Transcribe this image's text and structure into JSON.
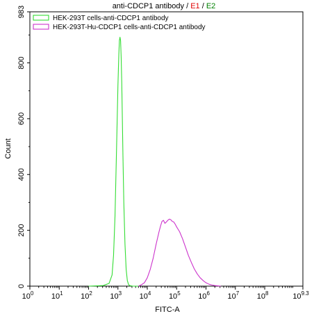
{
  "chart_data": {
    "type": "line",
    "title_parts": [
      {
        "text": "anti-CDCP1 antibody ",
        "color": "#000000"
      },
      {
        "text": "/ ",
        "color": "#000000"
      },
      {
        "text": "E1",
        "color": "#e00000"
      },
      {
        "text": " / ",
        "color": "#000000"
      },
      {
        "text": "E2",
        "color": "#008000"
      }
    ],
    "xlabel": "FITC-A",
    "ylabel": "Count",
    "x_scale": "log",
    "xlim": [
      1,
      1995262315
    ],
    "ylim": [
      0,
      983
    ],
    "x_ticks": [
      {
        "base": "10",
        "exp": "0",
        "value": 1
      },
      {
        "base": "10",
        "exp": "1",
        "value": 10
      },
      {
        "base": "10",
        "exp": "2",
        "value": 100
      },
      {
        "base": "10",
        "exp": "3",
        "value": 1000
      },
      {
        "base": "10",
        "exp": "4",
        "value": 10000
      },
      {
        "base": "10",
        "exp": "5",
        "value": 100000
      },
      {
        "base": "10",
        "exp": "6",
        "value": 1000000
      },
      {
        "base": "10",
        "exp": "7",
        "value": 10000000
      },
      {
        "base": "10",
        "exp": "8",
        "value": 100000000
      },
      {
        "base": "10",
        "exp": "9.3",
        "value": 1995262315
      }
    ],
    "y_ticks": [
      "0",
      "200",
      "400",
      "600",
      "800",
      "983"
    ],
    "y_tick_values": [
      0,
      200,
      400,
      600,
      800,
      983
    ],
    "grid": false,
    "legend_position": "top-left",
    "series": [
      {
        "name": "HEK-293T cells-anti-CDCP1 antibody",
        "color": "#33dd33",
        "x": [
          100,
          316,
          500,
          631,
          708,
          794,
          891,
          1000,
          1072,
          1122,
          1175,
          1230,
          1288,
          1349,
          1413,
          1479,
          1585,
          1738,
          1905,
          2089,
          2291,
          2512,
          3162,
          5012
        ],
        "y": [
          0,
          2,
          10,
          40,
          110,
          250,
          480,
          720,
          830,
          880,
          892,
          880,
          820,
          730,
          600,
          470,
          300,
          150,
          60,
          20,
          6,
          2,
          0,
          0
        ]
      },
      {
        "name": "HEK-293T-Hu-CDCP1 cells-anti-CDCP1 antibody",
        "color": "#cc33cc",
        "x": [
          5012,
          6310,
          7943,
          10000,
          12589,
          15849,
          19953,
          25119,
          28184,
          31623,
          35481,
          39811,
          44668,
          50119,
          56234,
          63096,
          70795,
          79433,
          89125,
          100000,
          125893,
          158489,
          199526,
          251189,
          316228,
          398107,
          501187,
          630957,
          794328,
          1000000,
          1258925,
          1584893,
          1995262,
          2511886,
          3162278
        ],
        "y": [
          0,
          5,
          12,
          30,
          60,
          100,
          150,
          195,
          215,
          232,
          236,
          225,
          230,
          236,
          240,
          238,
          232,
          230,
          222,
          212,
          195,
          170,
          140,
          110,
          85,
          62,
          44,
          30,
          20,
          12,
          7,
          4,
          2,
          1,
          0
        ]
      }
    ]
  },
  "colors": {
    "axis": "#000000",
    "background": "#ffffff"
  }
}
